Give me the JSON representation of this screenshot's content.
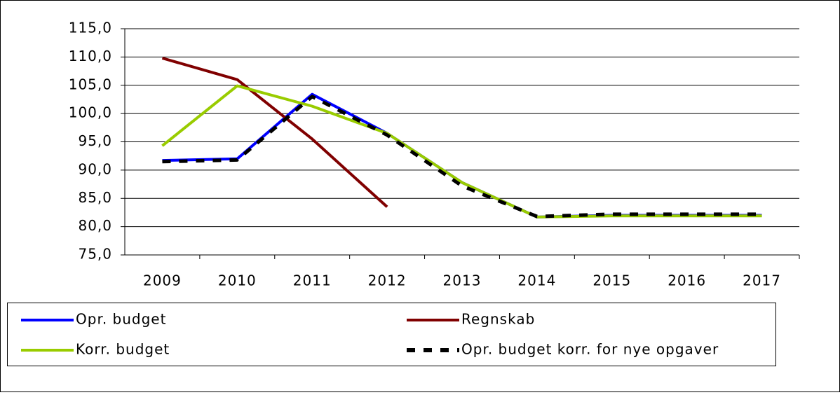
{
  "chart_data": {
    "type": "line",
    "categories": [
      "2009",
      "2010",
      "2011",
      "2012",
      "2013",
      "2014",
      "2015",
      "2016",
      "2017"
    ],
    "series": [
      {
        "name": "Opr. budget",
        "color": "#0000ff",
        "values": [
          91.7,
          92.0,
          103.4,
          96.5,
          87.8,
          81.7,
          82.0,
          82.0,
          82.0
        ]
      },
      {
        "name": "Regnskab",
        "color": "#800000",
        "values": [
          109.8,
          106.0,
          95.5,
          83.5,
          null,
          null,
          null,
          null,
          null
        ]
      },
      {
        "name": "Korr. budget",
        "color": "#99cc00",
        "values": [
          94.3,
          104.9,
          101.3,
          96.5,
          87.8,
          81.7,
          81.9,
          81.9,
          81.9
        ]
      },
      {
        "name": "Opr. budget korr. for nye opgaver",
        "color": "#000000",
        "dashed": true,
        "values": [
          91.5,
          91.8,
          103.0,
          96.2,
          87.2,
          81.8,
          82.2,
          82.2,
          82.2
        ]
      }
    ],
    "ylim": [
      75,
      115
    ],
    "yticks": [
      {
        "value": 75,
        "label": "75,0"
      },
      {
        "value": 80,
        "label": "80,0"
      },
      {
        "value": 85,
        "label": "85,0"
      },
      {
        "value": 90,
        "label": "90,0"
      },
      {
        "value": 95,
        "label": "95,0"
      },
      {
        "value": 100,
        "label": "100,0"
      },
      {
        "value": 105,
        "label": "105,0"
      },
      {
        "value": 110,
        "label": "110,0"
      },
      {
        "value": 115,
        "label": "115,0"
      }
    ],
    "grid": true,
    "legend": "bottom"
  }
}
